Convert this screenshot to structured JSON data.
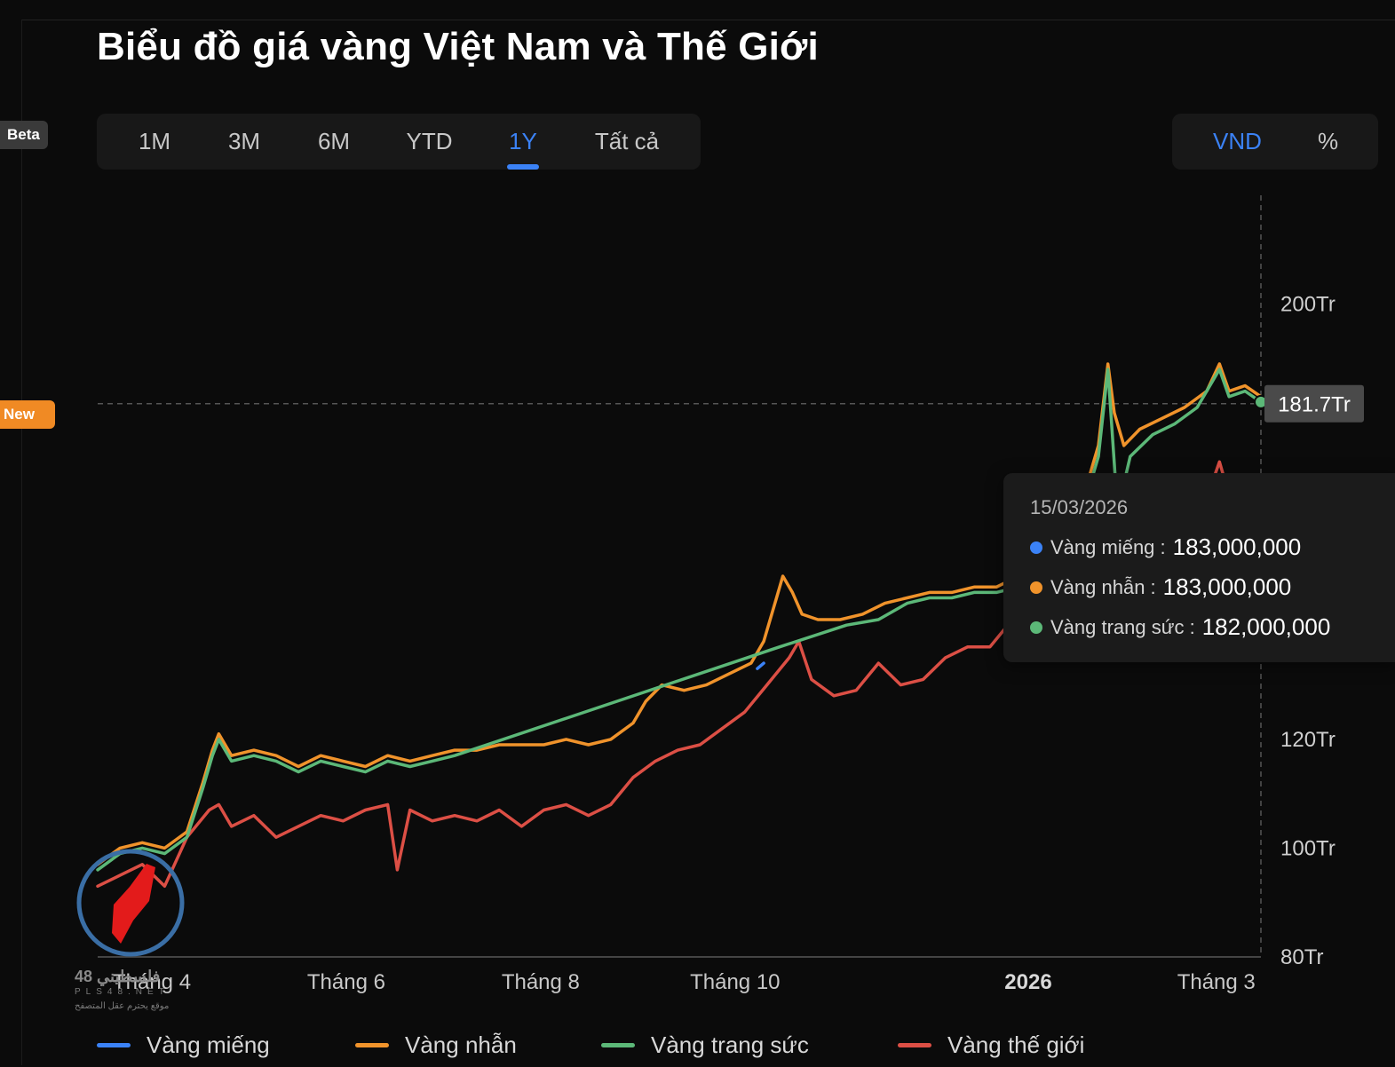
{
  "page": {
    "title": "Biểu đồ giá vàng Việt Nam và Thế Giới"
  },
  "side_badges": {
    "beta": "Beta",
    "new": "New"
  },
  "range_tabs": [
    {
      "label": "1M",
      "active": false
    },
    {
      "label": "3M",
      "active": false
    },
    {
      "label": "6M",
      "active": false
    },
    {
      "label": "YTD",
      "active": false
    },
    {
      "label": "1Y",
      "active": true
    },
    {
      "label": "Tất cả",
      "active": false
    }
  ],
  "unit_toggle": {
    "vnd": "VND",
    "percent": "%",
    "active": "VND"
  },
  "tooltip": {
    "date": "15/03/2026",
    "rows": [
      {
        "label": "Vàng miếng :",
        "value": "183,000,000",
        "color": "#3b82f6"
      },
      {
        "label": "Vàng nhẫn :",
        "value": "183,000,000",
        "color": "#f0932b"
      },
      {
        "label": "Vàng trang sức :",
        "value": "182,000,000",
        "color": "#5cb878"
      }
    ]
  },
  "crosshair": {
    "value": 181.7,
    "label": "181.7Tr"
  },
  "watermark": {
    "line1": "48 فلسطيني",
    "line2": "PLS48.NET",
    "line3": "موقع يحترم عقل المتصفح"
  },
  "chart_data": {
    "type": "line",
    "title": "Biểu đồ giá vàng Việt Nam và Thế Giới",
    "x_range": [
      "2025-03-15",
      "2026-03-15"
    ],
    "ylim": [
      80,
      220
    ],
    "y_ticks": [
      {
        "value": 80,
        "label": "80Tr"
      },
      {
        "value": 100,
        "label": "100Tr"
      },
      {
        "value": 120,
        "label": "120Tr"
      },
      {
        "value": 200,
        "label": "200Tr"
      }
    ],
    "x_ticks": [
      {
        "date": "2025-04-01",
        "label": "Tháng 4",
        "bold": false
      },
      {
        "date": "2025-06-01",
        "label": "Tháng 6",
        "bold": false
      },
      {
        "date": "2025-08-01",
        "label": "Tháng 8",
        "bold": false
      },
      {
        "date": "2025-10-01",
        "label": "Tháng 10",
        "bold": false
      },
      {
        "date": "2026-01-01",
        "label": "2026",
        "bold": true
      },
      {
        "date": "2026-03-01",
        "label": "Tháng 3",
        "bold": false
      }
    ],
    "series": [
      {
        "name": "Vàng miếng",
        "color": "#3b82f6",
        "points": [
          [
            "2025-10-08",
            133.0
          ],
          [
            "2025-10-10",
            134.0
          ]
        ]
      },
      {
        "name": "Vàng nhẫn",
        "color": "#f0932b",
        "points": [
          [
            "2025-03-15",
            97
          ],
          [
            "2025-03-22",
            100
          ],
          [
            "2025-03-29",
            101
          ],
          [
            "2025-04-05",
            100
          ],
          [
            "2025-04-12",
            103
          ],
          [
            "2025-04-17",
            112
          ],
          [
            "2025-04-20",
            118
          ],
          [
            "2025-04-22",
            121
          ],
          [
            "2025-04-26",
            117
          ],
          [
            "2025-05-03",
            118
          ],
          [
            "2025-05-10",
            117
          ],
          [
            "2025-05-17",
            115
          ],
          [
            "2025-05-24",
            117
          ],
          [
            "2025-05-31",
            116
          ],
          [
            "2025-06-07",
            115
          ],
          [
            "2025-06-14",
            117
          ],
          [
            "2025-06-21",
            116
          ],
          [
            "2025-06-28",
            117
          ],
          [
            "2025-07-05",
            118
          ],
          [
            "2025-07-12",
            118
          ],
          [
            "2025-07-19",
            119
          ],
          [
            "2025-07-26",
            119
          ],
          [
            "2025-08-02",
            119
          ],
          [
            "2025-08-09",
            120
          ],
          [
            "2025-08-16",
            119
          ],
          [
            "2025-08-23",
            120
          ],
          [
            "2025-08-30",
            123
          ],
          [
            "2025-09-03",
            127
          ],
          [
            "2025-09-08",
            130
          ],
          [
            "2025-09-15",
            129
          ],
          [
            "2025-09-22",
            130
          ],
          [
            "2025-09-29",
            132
          ],
          [
            "2025-10-06",
            134
          ],
          [
            "2025-10-10",
            138
          ],
          [
            "2025-10-14",
            146
          ],
          [
            "2025-10-16",
            150
          ],
          [
            "2025-10-19",
            147
          ],
          [
            "2025-10-22",
            143
          ],
          [
            "2025-10-27",
            142
          ],
          [
            "2025-11-03",
            142
          ],
          [
            "2025-11-10",
            143
          ],
          [
            "2025-11-17",
            145
          ],
          [
            "2025-11-24",
            146
          ],
          [
            "2025-12-01",
            147
          ],
          [
            "2025-12-08",
            147
          ],
          [
            "2025-12-15",
            148
          ],
          [
            "2025-12-22",
            148
          ],
          [
            "2025-12-29",
            150
          ],
          [
            "2026-01-05",
            153
          ],
          [
            "2026-01-12",
            159
          ],
          [
            "2026-01-19",
            166
          ],
          [
            "2026-01-23",
            174
          ],
          [
            "2026-01-26",
            189
          ],
          [
            "2026-01-28",
            180
          ],
          [
            "2026-01-31",
            174
          ],
          [
            "2026-02-05",
            177
          ],
          [
            "2026-02-12",
            179
          ],
          [
            "2026-02-19",
            181
          ],
          [
            "2026-02-26",
            184
          ],
          [
            "2026-03-02",
            189
          ],
          [
            "2026-03-05",
            184
          ],
          [
            "2026-03-10",
            185
          ],
          [
            "2026-03-15",
            183
          ]
        ]
      },
      {
        "name": "Vàng trang sức",
        "color": "#5cb878",
        "points": [
          [
            "2025-03-15",
            96
          ],
          [
            "2025-03-22",
            99
          ],
          [
            "2025-03-29",
            100
          ],
          [
            "2025-04-05",
            99
          ],
          [
            "2025-04-12",
            102
          ],
          [
            "2025-04-17",
            111
          ],
          [
            "2025-04-20",
            117
          ],
          [
            "2025-04-22",
            120
          ],
          [
            "2025-04-26",
            116
          ],
          [
            "2025-05-03",
            117
          ],
          [
            "2025-05-10",
            116
          ],
          [
            "2025-05-17",
            114
          ],
          [
            "2025-05-24",
            116
          ],
          [
            "2025-05-31",
            115
          ],
          [
            "2025-06-07",
            114
          ],
          [
            "2025-06-14",
            116
          ],
          [
            "2025-06-21",
            115
          ],
          [
            "2025-06-28",
            116
          ],
          [
            "2025-07-05",
            117
          ],
          [
            "2025-10-15",
            137
          ],
          [
            "2025-11-05",
            141
          ],
          [
            "2025-11-15",
            142
          ],
          [
            "2025-11-24",
            145
          ],
          [
            "2025-12-01",
            146
          ],
          [
            "2025-12-08",
            146
          ],
          [
            "2025-12-15",
            147
          ],
          [
            "2025-12-22",
            147
          ],
          [
            "2025-12-29",
            148
          ],
          [
            "2026-01-05",
            152
          ],
          [
            "2026-01-12",
            157
          ],
          [
            "2026-01-19",
            164
          ],
          [
            "2026-01-23",
            172
          ],
          [
            "2026-01-26",
            188
          ],
          [
            "2026-01-29",
            162
          ],
          [
            "2026-02-02",
            172
          ],
          [
            "2026-02-09",
            176
          ],
          [
            "2026-02-16",
            178
          ],
          [
            "2026-02-23",
            181
          ],
          [
            "2026-03-02",
            188
          ],
          [
            "2026-03-05",
            183
          ],
          [
            "2026-03-10",
            184
          ],
          [
            "2026-03-15",
            182
          ]
        ]
      },
      {
        "name": "Vàng thế giới",
        "color": "#dc4f45",
        "points": [
          [
            "2025-03-15",
            93
          ],
          [
            "2025-03-22",
            95
          ],
          [
            "2025-03-29",
            97
          ],
          [
            "2025-04-05",
            93
          ],
          [
            "2025-04-12",
            102
          ],
          [
            "2025-04-19",
            107
          ],
          [
            "2025-04-22",
            108
          ],
          [
            "2025-04-26",
            104
          ],
          [
            "2025-05-03",
            106
          ],
          [
            "2025-05-10",
            102
          ],
          [
            "2025-05-17",
            104
          ],
          [
            "2025-05-24",
            106
          ],
          [
            "2025-05-31",
            105
          ],
          [
            "2025-06-07",
            107
          ],
          [
            "2025-06-14",
            108
          ],
          [
            "2025-06-17",
            96
          ],
          [
            "2025-06-21",
            107
          ],
          [
            "2025-06-28",
            105
          ],
          [
            "2025-07-05",
            106
          ],
          [
            "2025-07-12",
            105
          ],
          [
            "2025-07-19",
            107
          ],
          [
            "2025-07-26",
            104
          ],
          [
            "2025-08-02",
            107
          ],
          [
            "2025-08-09",
            108
          ],
          [
            "2025-08-16",
            106
          ],
          [
            "2025-08-23",
            108
          ],
          [
            "2025-08-30",
            113
          ],
          [
            "2025-09-06",
            116
          ],
          [
            "2025-09-13",
            118
          ],
          [
            "2025-09-20",
            119
          ],
          [
            "2025-09-27",
            122
          ],
          [
            "2025-10-04",
            125
          ],
          [
            "2025-10-11",
            130
          ],
          [
            "2025-10-18",
            135
          ],
          [
            "2025-10-21",
            138
          ],
          [
            "2025-10-25",
            131
          ],
          [
            "2025-11-01",
            128
          ],
          [
            "2025-11-08",
            129
          ],
          [
            "2025-11-15",
            134
          ],
          [
            "2025-11-22",
            130
          ],
          [
            "2025-11-29",
            131
          ],
          [
            "2025-12-06",
            135
          ],
          [
            "2025-12-13",
            137
          ],
          [
            "2025-12-20",
            137
          ],
          [
            "2025-12-27",
            142
          ],
          [
            "2026-01-03",
            144
          ],
          [
            "2026-01-10",
            148
          ],
          [
            "2026-01-17",
            154
          ],
          [
            "2026-01-24",
            166
          ],
          [
            "2026-01-30",
            158
          ],
          [
            "2026-02-06",
            158
          ],
          [
            "2026-02-13",
            161
          ],
          [
            "2026-02-20",
            163
          ],
          [
            "2026-02-27",
            166
          ],
          [
            "2026-03-02",
            171
          ],
          [
            "2026-03-05",
            165
          ],
          [
            "2026-03-10",
            166
          ],
          [
            "2026-03-15",
            165
          ]
        ]
      }
    ]
  }
}
